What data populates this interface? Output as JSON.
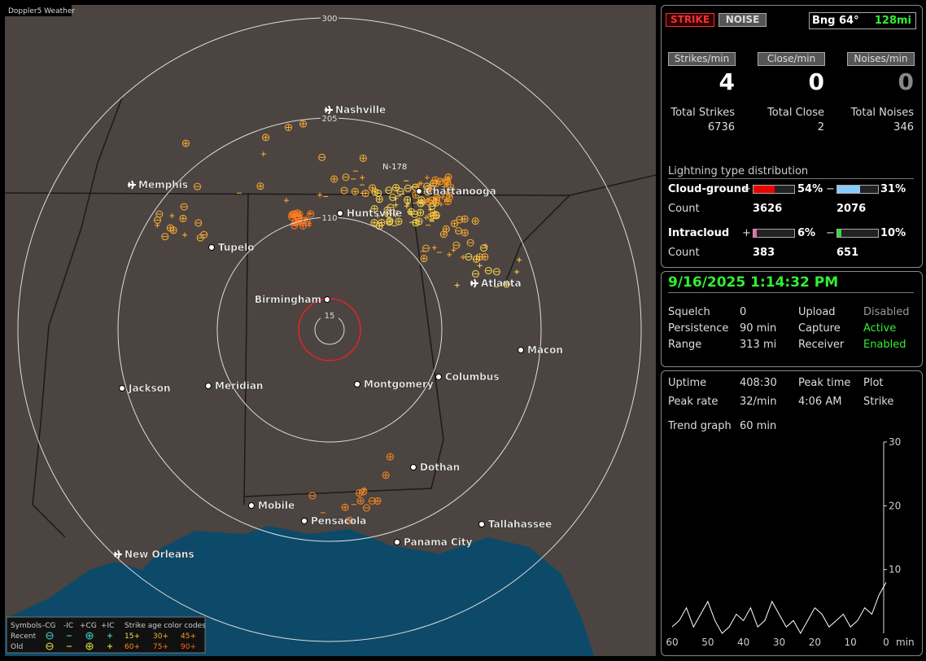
{
  "header": {
    "title": "Doppler5 Weather"
  },
  "map": {
    "ring_labels": [
      300,
      205,
      110,
      15
    ],
    "strike_label": "N-178",
    "cities": [
      "Nashville",
      "Memphis",
      "Chattanooga",
      "Huntsville",
      "Tupelo",
      "Birmingham",
      "Atlanta",
      "Macon",
      "Columbus",
      "Montgomery",
      "Meridian",
      "Jackson",
      "Dothan",
      "Mobile",
      "Pensacola",
      "Panama City",
      "Tallahassee",
      "New Orleans"
    ]
  },
  "legend": {
    "symbols": "Symbols",
    "types": [
      "-CG",
      "-IC",
      "+CG",
      "+IC"
    ],
    "age_title": "Strike age color codes",
    "rows": [
      "Recent",
      "Old"
    ],
    "recent_ages": [
      "15+",
      "30+",
      "45+"
    ],
    "old_ages": [
      "60+",
      "75+",
      "90+"
    ]
  },
  "status": {
    "modes": [
      "STRIKE",
      "NOISE"
    ],
    "bearing": "Bng 64°",
    "distance": "128mi",
    "rates": [
      {
        "label": "Strikes/min",
        "value": 4
      },
      {
        "label": "Close/min",
        "value": 0
      },
      {
        "label": "Noises/min",
        "value": 0
      }
    ],
    "totals": [
      {
        "label": "Total Strikes",
        "value": 6736
      },
      {
        "label": "Total Close",
        "value": 2
      },
      {
        "label": "Total Noises",
        "value": 346
      }
    ],
    "distribution": {
      "title": "Lightning type distribution",
      "rows": [
        {
          "type": "Cloud-ground",
          "pos_sign": "+",
          "pos_pct": "54%",
          "neg_sign": "−",
          "neg_pct": "31%",
          "count_label": "Count",
          "pos_count": 3626,
          "neg_count": 2076
        },
        {
          "type": "Intracloud",
          "pos_sign": "+",
          "pos_pct": "6%",
          "neg_sign": "−",
          "neg_pct": "10%",
          "count_label": "Count",
          "pos_count": 383,
          "neg_count": 651
        }
      ]
    }
  },
  "settings": {
    "datetime": "9/16/2025 1:14:32 PM",
    "rows": [
      [
        {
          "label": "Squelch",
          "value": "0"
        },
        {
          "label": "Upload",
          "value": "Disabled"
        }
      ],
      [
        {
          "label": "Persistence",
          "value": "90 min"
        },
        {
          "label": "Capture",
          "value": "Active"
        }
      ],
      [
        {
          "label": "Range",
          "value": "313 mi"
        },
        {
          "label": "Receiver",
          "value": "Enabled"
        }
      ]
    ]
  },
  "stats": {
    "uptime_label": "Uptime",
    "uptime": "408:30",
    "peak_time_label": "Peak time",
    "peak_time": "4:06 AM",
    "plot_label": "Plot",
    "plot": "Strike",
    "peak_rate_label": "Peak rate",
    "peak_rate": "32/min",
    "trend_label": "Trend graph",
    "trend_window": "60 min"
  },
  "trend": {
    "type": "line",
    "x": [
      60,
      58,
      56,
      54,
      52,
      50,
      48,
      46,
      44,
      42,
      40,
      38,
      36,
      34,
      32,
      30,
      28,
      26,
      24,
      22,
      20,
      18,
      16,
      14,
      12,
      10,
      8,
      6,
      4,
      2,
      0
    ],
    "series": [
      {
        "color": "#ffffff",
        "values": [
          1,
          2,
          4,
          1,
          3,
          5,
          2,
          0,
          1,
          3,
          2,
          4,
          1,
          2,
          5,
          3,
          1,
          2,
          0,
          2,
          4,
          3,
          1,
          2,
          3,
          1,
          2,
          4,
          3,
          6,
          8
        ]
      }
    ],
    "xlim": [
      60,
      0
    ],
    "xticks": [
      60,
      50,
      40,
      30,
      20,
      10,
      0
    ],
    "x_unit": "min",
    "ylim": [
      0,
      30
    ],
    "yticks": [
      10,
      20,
      30
    ]
  }
}
